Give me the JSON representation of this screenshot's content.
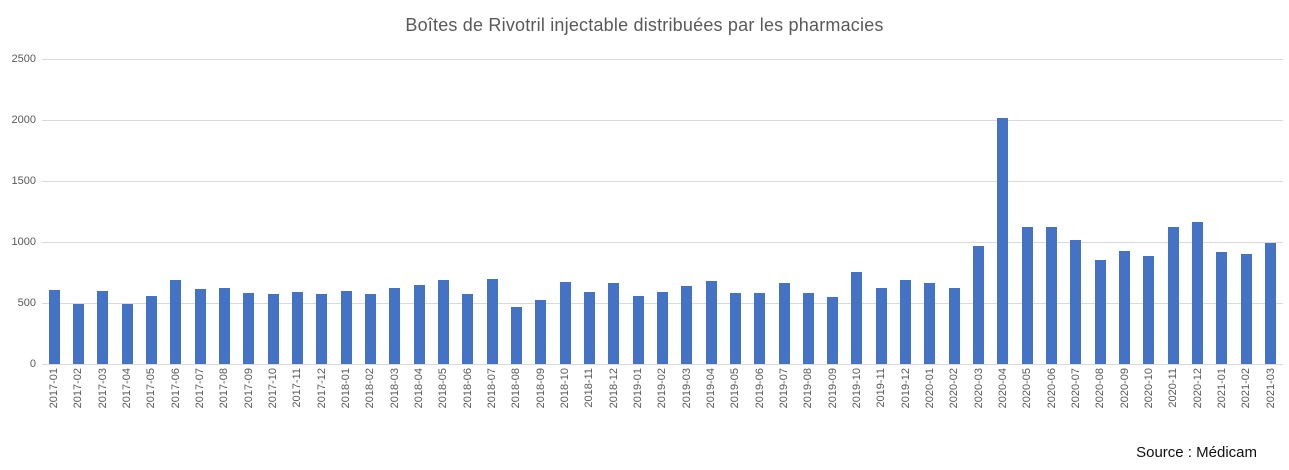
{
  "chart": {
    "title": "Boîtes de Rivotril injectable distribuées par les pharmacies",
    "source_note": "Source : Médicam"
  },
  "chart_data": {
    "type": "bar",
    "title": "Boîtes de Rivotril injectable distribuées par les pharmacies",
    "xlabel": "",
    "ylabel": "",
    "categories": [
      "2017-01",
      "2017-02",
      "2017-03",
      "2017-04",
      "2017-05",
      "2017-06",
      "2017-07",
      "2017-08",
      "2017-09",
      "2017-10",
      "2017-11",
      "2017-12",
      "2018-01",
      "2018-02",
      "2018-03",
      "2018-04",
      "2018-05",
      "2018-06",
      "2018-07",
      "2018-08",
      "2018-09",
      "2018-10",
      "2018-11",
      "2018-12",
      "2019-01",
      "2019-02",
      "2019-03",
      "2019-04",
      "2019-05",
      "2019-06",
      "2019-07",
      "2019-08",
      "2019-09",
      "2019-10",
      "2019-11",
      "2019-12",
      "2020-01",
      "2020-02",
      "2020-03",
      "2020-04",
      "2020-05",
      "2020-06",
      "2020-07",
      "2020-08",
      "2020-09",
      "2020-10",
      "2020-11",
      "2020-12",
      "2021-01",
      "2021-02",
      "2021-03"
    ],
    "values": [
      605,
      490,
      600,
      495,
      560,
      685,
      615,
      620,
      585,
      575,
      590,
      570,
      595,
      575,
      620,
      645,
      690,
      570,
      700,
      470,
      525,
      675,
      590,
      660,
      560,
      590,
      640,
      680,
      580,
      580,
      660,
      585,
      550,
      755,
      625,
      685,
      660,
      620,
      965,
      2020,
      1120,
      1120,
      1020,
      850,
      925,
      885,
      1125,
      1160,
      915,
      900,
      995
    ],
    "ylim": [
      0,
      2500
    ],
    "yticks": [
      0,
      500,
      1000,
      1500,
      2000,
      2500
    ],
    "grid": true,
    "legend": "none",
    "bar_color": "#4472C4",
    "gridline_color": "#D9D9D9",
    "axis_text_color": "#595959",
    "source_note": "Source : Médicam"
  }
}
